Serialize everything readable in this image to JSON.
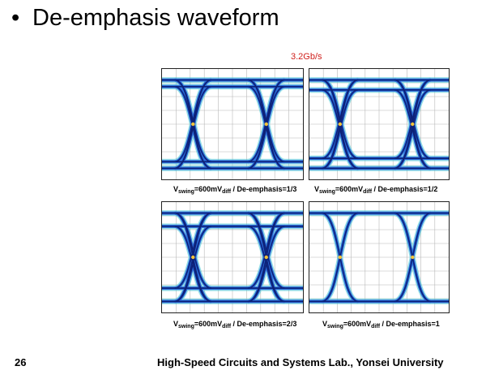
{
  "slide": {
    "bullet": "•",
    "title": "De-emphasis waveform",
    "data_rate": "3.2Gb/s",
    "page_number": "26",
    "footer": "High-Speed Circuits and Systems Lab., Yonsei University"
  },
  "plots": [
    {
      "label_prefix": "V",
      "label_swing_sub": "swing",
      "label_mid": "=600mV",
      "label_diff_sub": "diff",
      "label_suffix": " / De-emphasis=1/3",
      "ratio": 0.333
    },
    {
      "label_prefix": "V",
      "label_swing_sub": "swing",
      "label_mid": "=600mV",
      "label_diff_sub": "diff",
      "label_suffix": " / De-emphasis=1/2",
      "ratio": 0.5
    },
    {
      "label_prefix": "V",
      "label_swing_sub": "swing",
      "label_mid": "=600mV",
      "label_diff_sub": "diff",
      "label_suffix": " / De-emphasis=2/3",
      "ratio": 0.667
    },
    {
      "label_prefix": "V",
      "label_swing_sub": "swing",
      "label_mid": "=600mV",
      "label_diff_sub": "diff",
      "label_suffix": " / De-emphasis=1",
      "ratio": 1.0
    }
  ],
  "colors": {
    "trace_outer": "#46c8d2",
    "trace_mid": "#1f5fd8",
    "trace_core": "#0a1a6e",
    "trace_hot": "#f2c23a",
    "grid": "#b8b8b8",
    "data_rate": "#d0201c"
  }
}
